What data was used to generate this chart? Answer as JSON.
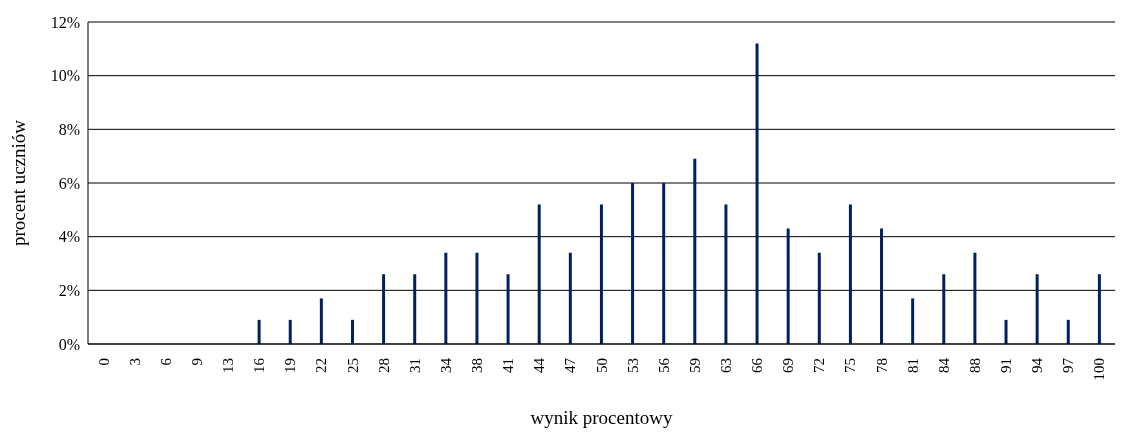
{
  "chart_data": {
    "type": "bar",
    "xlabel": "wynik procentowy",
    "ylabel": "procent uczniów",
    "categories": [
      "0",
      "3",
      "6",
      "9",
      "13",
      "16",
      "19",
      "22",
      "25",
      "28",
      "31",
      "34",
      "38",
      "41",
      "44",
      "47",
      "50",
      "53",
      "56",
      "59",
      "63",
      "66",
      "69",
      "72",
      "75",
      "78",
      "81",
      "84",
      "88",
      "91",
      "94",
      "97",
      "100"
    ],
    "values": [
      0,
      0,
      0,
      0,
      0,
      0.9,
      0.9,
      1.7,
      0.9,
      2.6,
      2.6,
      3.4,
      3.4,
      2.6,
      5.2,
      3.4,
      5.2,
      6.0,
      6.0,
      6.9,
      5.2,
      11.2,
      4.3,
      3.4,
      5.2,
      4.3,
      1.7,
      2.6,
      3.4,
      0.9,
      2.6,
      0.9,
      2.6
    ],
    "color": "#002060",
    "ylim": [
      0,
      12
    ],
    "yticks": [
      {
        "value": 0,
        "label": "0%"
      },
      {
        "value": 2,
        "label": "2%"
      },
      {
        "value": 4,
        "label": "4%"
      },
      {
        "value": 6,
        "label": "6%"
      },
      {
        "value": 8,
        "label": "8%"
      },
      {
        "value": 10,
        "label": "10%"
      },
      {
        "value": 12,
        "label": "12%"
      }
    ],
    "grid": "y"
  }
}
